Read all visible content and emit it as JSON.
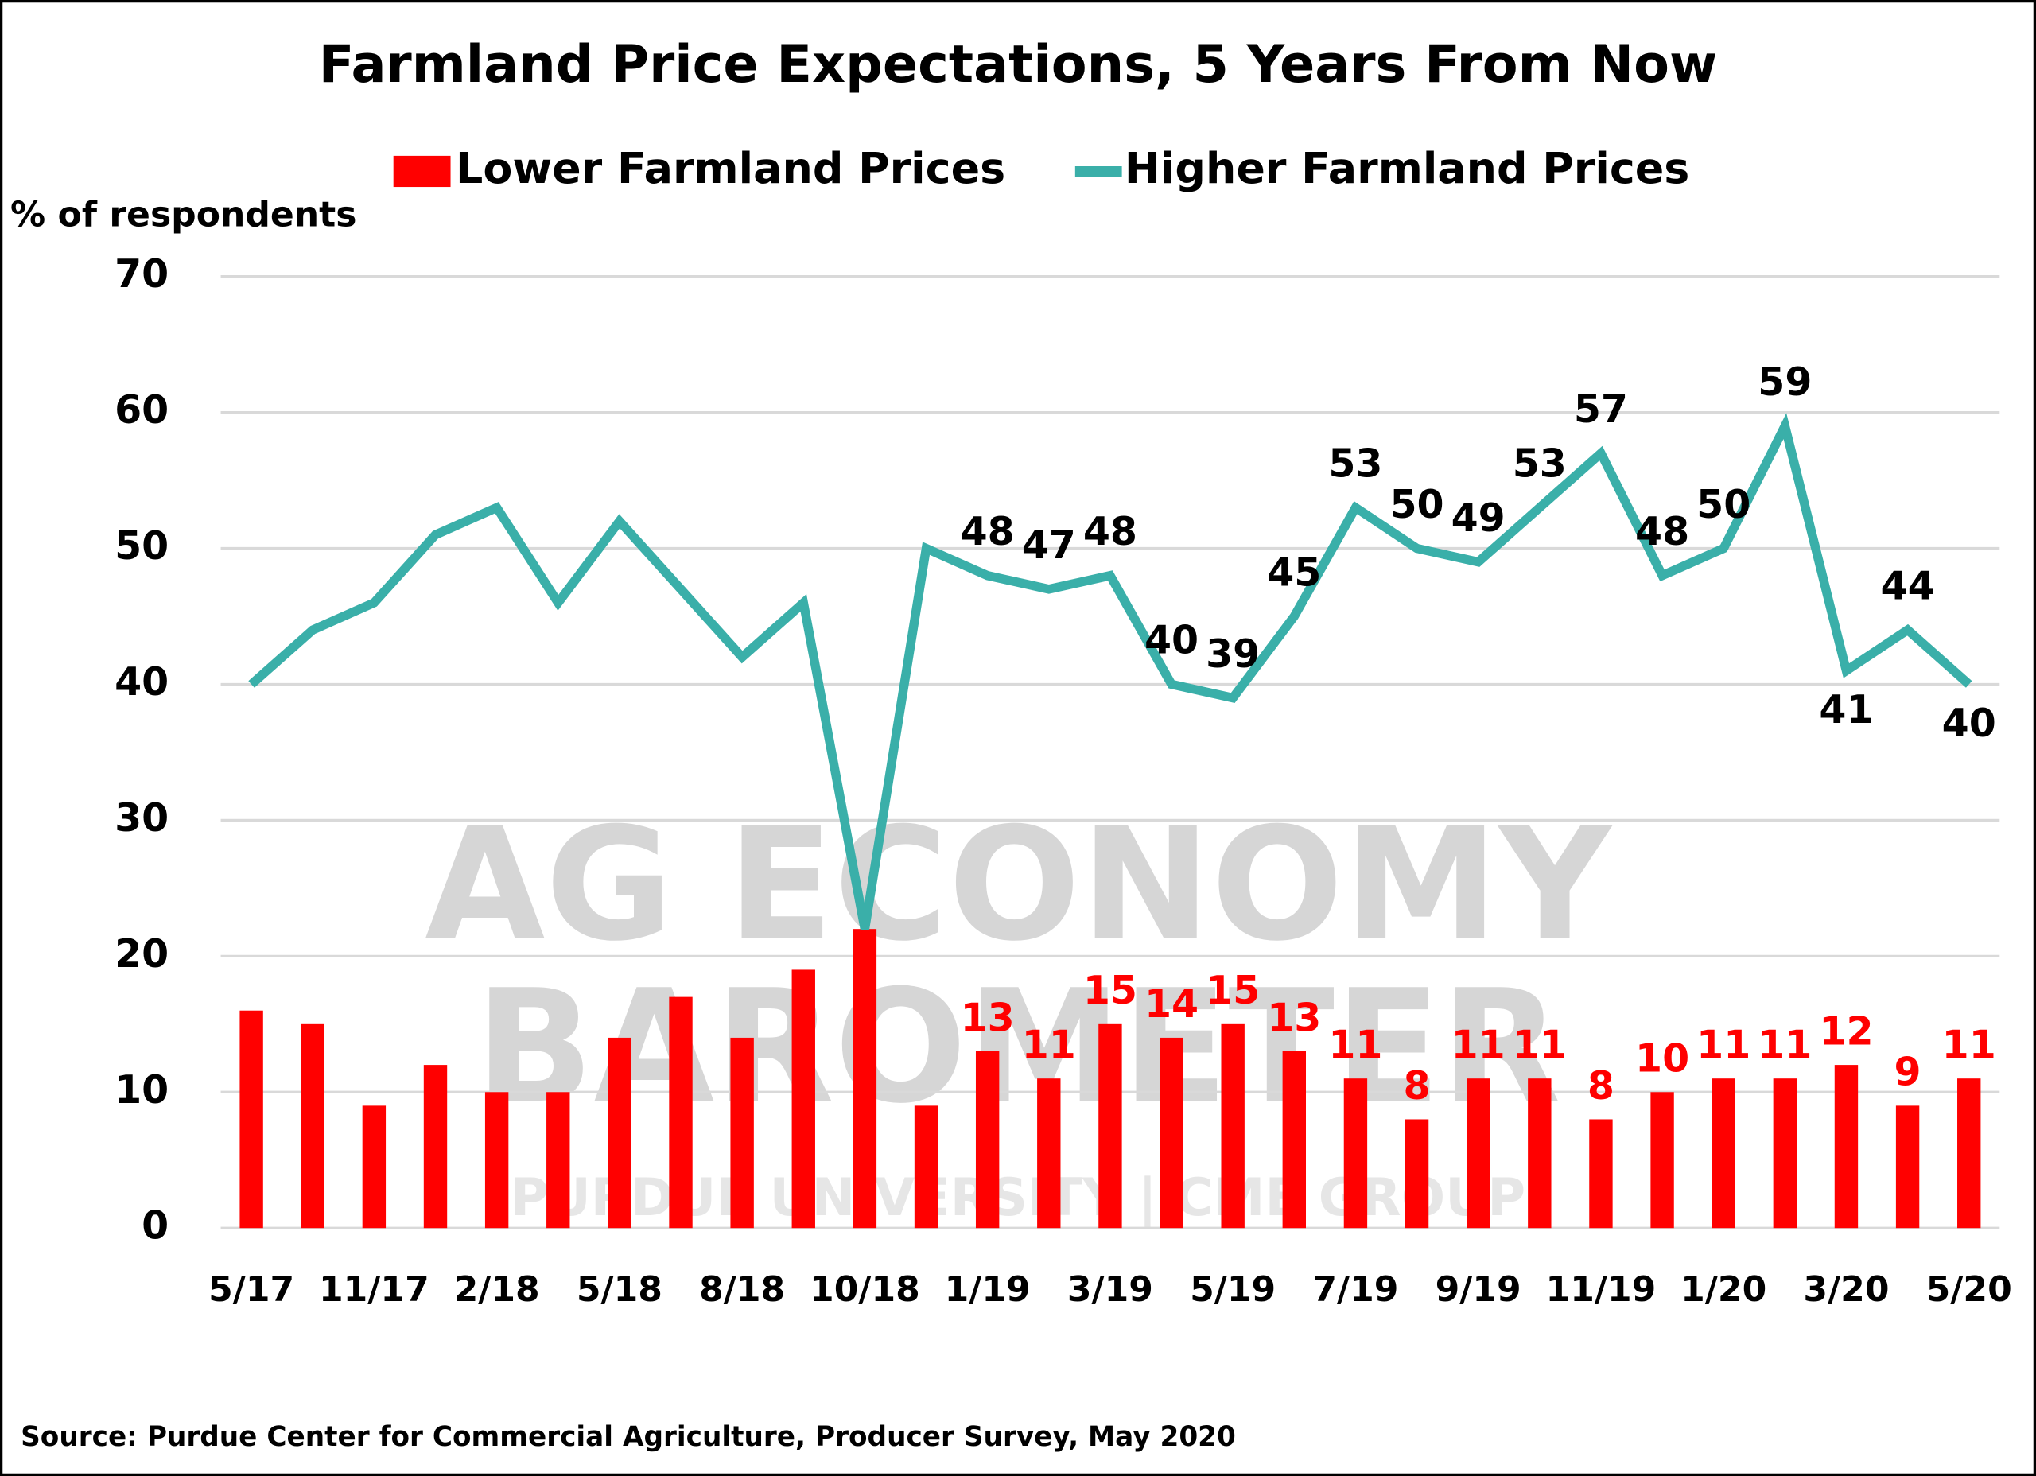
{
  "chart_data": {
    "type": "bar-line",
    "title": "Farmland Price Expectations, 5 Years From Now",
    "y_label": "% of respondents",
    "source": "Source: Purdue Center for Commercial Agriculture, Producer Survey, May 2020",
    "watermark": [
      "AG ECONOMY",
      "BAROMETER",
      "PURDUE UNIVERSITY | CME GROUP"
    ],
    "categories": [
      "5/17",
      null,
      "11/17",
      null,
      "2/18",
      null,
      "5/18",
      null,
      "8/18",
      null,
      "10/18",
      null,
      "1/19",
      null,
      "3/19",
      null,
      "5/19",
      null,
      "7/19",
      null,
      "9/19",
      null,
      "11/19",
      null,
      "1/20",
      null,
      "3/20",
      null,
      "5/20"
    ],
    "series": [
      {
        "name": "Lower Farmland Prices",
        "type": "bar",
        "color": "#ff0000",
        "values": [
          16,
          15,
          9,
          12,
          10,
          10,
          14,
          17,
          14,
          19,
          22,
          9,
          13,
          11,
          15,
          14,
          15,
          13,
          11,
          8,
          11,
          11,
          8,
          10,
          11,
          11,
          12,
          9,
          11
        ],
        "value_labels": [
          null,
          null,
          null,
          null,
          null,
          null,
          null,
          null,
          null,
          null,
          null,
          null,
          "13",
          "11",
          "15",
          "14",
          "15",
          "13",
          "11",
          "8",
          "11",
          "11",
          "8",
          "10",
          "11",
          "11",
          "12",
          "9",
          "11"
        ]
      },
      {
        "name": "Higher Farmland Prices",
        "type": "line",
        "color": "#3aafa9",
        "values": [
          40,
          44,
          46,
          51,
          53,
          46,
          52,
          47,
          42,
          46,
          22,
          50,
          48,
          47,
          48,
          40,
          39,
          45,
          53,
          50,
          49,
          53,
          57,
          48,
          50,
          59,
          41,
          44,
          40
        ],
        "value_labels": [
          null,
          null,
          null,
          null,
          null,
          null,
          null,
          null,
          null,
          null,
          null,
          null,
          "48",
          "47",
          "48",
          "40",
          "39",
          "45",
          "53",
          "50",
          "49",
          "53",
          "57",
          "48",
          "50",
          "59",
          "41",
          "44",
          "40"
        ]
      }
    ],
    "ylim": [
      0,
      70
    ],
    "yticks": [
      0,
      10,
      20,
      30,
      40,
      50,
      60,
      70
    ],
    "grid": true
  }
}
